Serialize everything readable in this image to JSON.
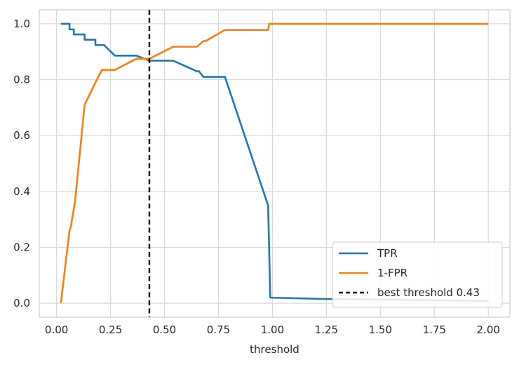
{
  "chart_data": {
    "type": "line",
    "title": "",
    "xlabel": "threshold",
    "ylabel": "",
    "xlim": [
      -0.08,
      2.1
    ],
    "ylim": [
      -0.05,
      1.05
    ],
    "grid": true,
    "x_ticks": [
      {
        "value": 0.0,
        "label": "0.00"
      },
      {
        "value": 0.25,
        "label": "0.25"
      },
      {
        "value": 0.5,
        "label": "0.50"
      },
      {
        "value": 0.75,
        "label": "0.75"
      },
      {
        "value": 1.0,
        "label": "1.00"
      },
      {
        "value": 1.25,
        "label": "1.25"
      },
      {
        "value": 1.5,
        "label": "1.50"
      },
      {
        "value": 1.75,
        "label": "1.75"
      },
      {
        "value": 2.0,
        "label": "2.00"
      }
    ],
    "y_ticks": [
      {
        "value": 0.0,
        "label": "0.0"
      },
      {
        "value": 0.2,
        "label": "0.2"
      },
      {
        "value": 0.4,
        "label": "0.4"
      },
      {
        "value": 0.6,
        "label": "0.6"
      },
      {
        "value": 0.8,
        "label": "0.8"
      },
      {
        "value": 1.0,
        "label": "1.0"
      }
    ],
    "legend_position": "lower-right",
    "series": [
      {
        "name": "TPR",
        "color": "#1f77b4",
        "style": "solid",
        "points": [
          [
            0.02,
            1.0
          ],
          [
            0.06,
            1.0
          ],
          [
            0.06,
            0.98
          ],
          [
            0.08,
            0.98
          ],
          [
            0.08,
            0.962
          ],
          [
            0.13,
            0.962
          ],
          [
            0.13,
            0.943
          ],
          [
            0.18,
            0.943
          ],
          [
            0.18,
            0.924
          ],
          [
            0.22,
            0.924
          ],
          [
            0.27,
            0.886
          ],
          [
            0.37,
            0.886
          ],
          [
            0.43,
            0.868
          ],
          [
            0.54,
            0.868
          ],
          [
            0.65,
            0.83
          ],
          [
            0.66,
            0.83
          ],
          [
            0.68,
            0.81
          ],
          [
            0.78,
            0.81
          ],
          [
            0.98,
            0.35
          ],
          [
            0.99,
            0.02
          ],
          [
            1.25,
            0.015
          ],
          [
            1.6,
            0.012
          ],
          [
            2.0,
            0.008
          ]
        ]
      },
      {
        "name": "1-FPR",
        "color": "#ff7f0e",
        "style": "solid",
        "points": [
          [
            0.02,
            0.0
          ],
          [
            0.06,
            0.26
          ],
          [
            0.065,
            0.27
          ],
          [
            0.085,
            0.36
          ],
          [
            0.13,
            0.71
          ],
          [
            0.18,
            0.79
          ],
          [
            0.21,
            0.835
          ],
          [
            0.27,
            0.835
          ],
          [
            0.37,
            0.875
          ],
          [
            0.43,
            0.875
          ],
          [
            0.54,
            0.918
          ],
          [
            0.65,
            0.918
          ],
          [
            0.68,
            0.938
          ],
          [
            0.69,
            0.938
          ],
          [
            0.78,
            0.978
          ],
          [
            0.97,
            0.978
          ],
          [
            0.98,
            0.978
          ],
          [
            0.985,
            1.0
          ],
          [
            2.0,
            1.0
          ]
        ]
      }
    ],
    "vlines": [
      {
        "name": "best threshold 0.43",
        "x": 0.43,
        "color": "#000000",
        "style": "dashed"
      }
    ]
  }
}
